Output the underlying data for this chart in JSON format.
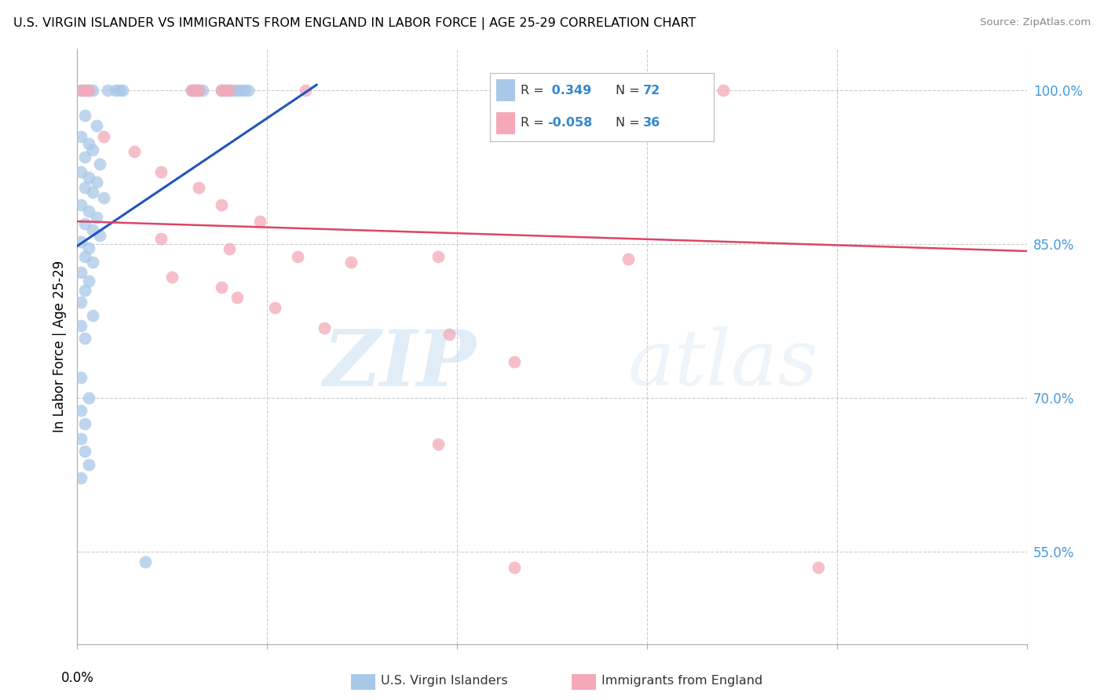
{
  "title": "U.S. VIRGIN ISLANDER VS IMMIGRANTS FROM ENGLAND IN LABOR FORCE | AGE 25-29 CORRELATION CHART",
  "source": "Source: ZipAtlas.com",
  "ylabel": "In Labor Force | Age 25-29",
  "xlim": [
    0.0,
    0.25
  ],
  "ylim": [
    0.46,
    1.04
  ],
  "blue_color": "#a8c8e8",
  "pink_color": "#f4a8b8",
  "blue_line_color": "#2255bb",
  "pink_line_color": "#dd4466",
  "blue_scatter": [
    [
      0.001,
      1.0
    ],
    [
      0.002,
      1.0
    ],
    [
      0.003,
      1.0
    ],
    [
      0.004,
      1.0
    ],
    [
      0.008,
      1.0
    ],
    [
      0.01,
      1.0
    ],
    [
      0.011,
      1.0
    ],
    [
      0.012,
      1.0
    ],
    [
      0.03,
      1.0
    ],
    [
      0.031,
      1.0
    ],
    [
      0.032,
      1.0
    ],
    [
      0.033,
      1.0
    ],
    [
      0.038,
      1.0
    ],
    [
      0.039,
      1.0
    ],
    [
      0.04,
      1.0
    ],
    [
      0.041,
      1.0
    ],
    [
      0.042,
      1.0
    ],
    [
      0.043,
      1.0
    ],
    [
      0.044,
      1.0
    ],
    [
      0.045,
      1.0
    ],
    [
      0.002,
      0.975
    ],
    [
      0.005,
      0.965
    ],
    [
      0.001,
      0.955
    ],
    [
      0.003,
      0.948
    ],
    [
      0.004,
      0.942
    ],
    [
      0.002,
      0.935
    ],
    [
      0.006,
      0.928
    ],
    [
      0.001,
      0.92
    ],
    [
      0.003,
      0.915
    ],
    [
      0.005,
      0.91
    ],
    [
      0.002,
      0.905
    ],
    [
      0.004,
      0.9
    ],
    [
      0.007,
      0.895
    ],
    [
      0.001,
      0.888
    ],
    [
      0.003,
      0.882
    ],
    [
      0.005,
      0.876
    ],
    [
      0.002,
      0.87
    ],
    [
      0.004,
      0.864
    ],
    [
      0.006,
      0.858
    ],
    [
      0.001,
      0.852
    ],
    [
      0.003,
      0.846
    ],
    [
      0.002,
      0.838
    ],
    [
      0.004,
      0.832
    ],
    [
      0.001,
      0.822
    ],
    [
      0.003,
      0.814
    ],
    [
      0.002,
      0.805
    ],
    [
      0.001,
      0.793
    ],
    [
      0.004,
      0.78
    ],
    [
      0.001,
      0.77
    ],
    [
      0.002,
      0.758
    ],
    [
      0.001,
      0.72
    ],
    [
      0.003,
      0.7
    ],
    [
      0.001,
      0.688
    ],
    [
      0.002,
      0.675
    ],
    [
      0.001,
      0.66
    ],
    [
      0.002,
      0.648
    ],
    [
      0.003,
      0.635
    ],
    [
      0.001,
      0.622
    ],
    [
      0.018,
      0.54
    ]
  ],
  "pink_scatter": [
    [
      0.001,
      1.0
    ],
    [
      0.002,
      1.0
    ],
    [
      0.003,
      1.0
    ],
    [
      0.03,
      1.0
    ],
    [
      0.031,
      1.0
    ],
    [
      0.032,
      1.0
    ],
    [
      0.038,
      1.0
    ],
    [
      0.039,
      1.0
    ],
    [
      0.04,
      1.0
    ],
    [
      0.06,
      1.0
    ],
    [
      0.17,
      1.0
    ],
    [
      0.007,
      0.955
    ],
    [
      0.015,
      0.94
    ],
    [
      0.022,
      0.92
    ],
    [
      0.032,
      0.905
    ],
    [
      0.038,
      0.888
    ],
    [
      0.048,
      0.872
    ],
    [
      0.022,
      0.855
    ],
    [
      0.04,
      0.845
    ],
    [
      0.058,
      0.838
    ],
    [
      0.072,
      0.832
    ],
    [
      0.095,
      0.838
    ],
    [
      0.145,
      0.835
    ],
    [
      0.025,
      0.818
    ],
    [
      0.038,
      0.808
    ],
    [
      0.042,
      0.798
    ],
    [
      0.052,
      0.788
    ],
    [
      0.065,
      0.768
    ],
    [
      0.098,
      0.762
    ],
    [
      0.115,
      0.735
    ],
    [
      0.095,
      0.655
    ],
    [
      0.115,
      0.535
    ],
    [
      0.195,
      0.535
    ]
  ],
  "blue_trendline": [
    [
      0.0,
      0.848
    ],
    [
      0.063,
      1.005
    ]
  ],
  "pink_trendline": [
    [
      0.0,
      0.872
    ],
    [
      0.25,
      0.843
    ]
  ],
  "watermark_zip": "ZIP",
  "watermark_atlas": "atlas",
  "background_color": "#ffffff",
  "grid_color": "#cccccc",
  "ytick_vals": [
    0.55,
    0.7,
    0.85,
    1.0
  ],
  "ytick_labels": [
    "55.0%",
    "70.0%",
    "85.0%",
    "100.0%"
  ],
  "legend_blue_r": "0.349",
  "legend_blue_n": "72",
  "legend_pink_r": "-0.058",
  "legend_pink_n": "36"
}
